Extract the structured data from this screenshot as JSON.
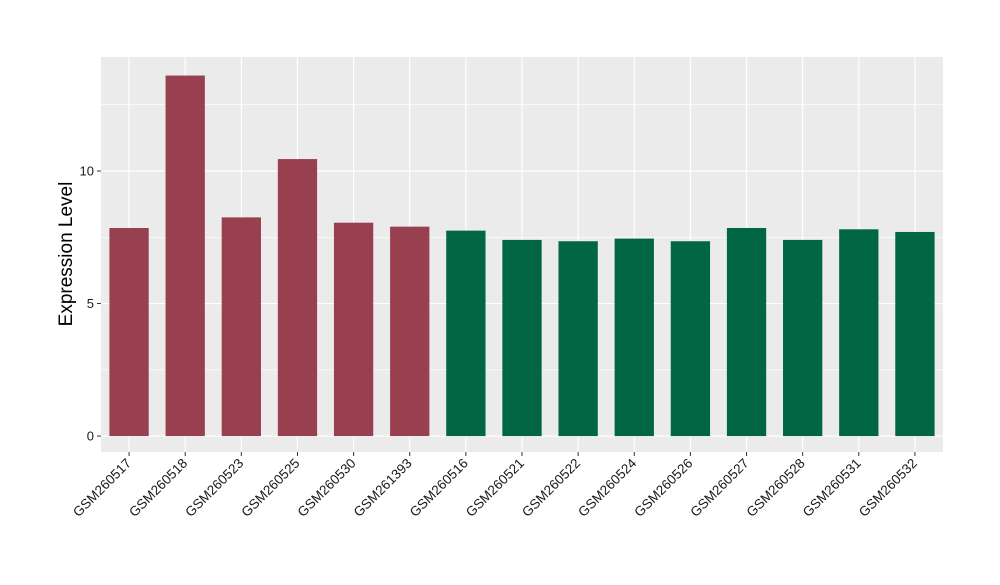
{
  "chart_data": {
    "type": "bar",
    "ylabel": "Expression Level",
    "xlabel": "",
    "title": "",
    "ylim": [
      -0.6,
      14.3
    ],
    "yticks": [
      0,
      5,
      10
    ],
    "categories": [
      "GSM260517",
      "GSM260518",
      "GSM260523",
      "GSM260525",
      "GSM260530",
      "GSM261393",
      "GSM260516",
      "GSM260521",
      "GSM260522",
      "GSM260524",
      "GSM260526",
      "GSM260527",
      "GSM260528",
      "GSM260531",
      "GSM260532"
    ],
    "values": [
      7.85,
      13.6,
      8.25,
      10.45,
      8.05,
      7.9,
      7.75,
      7.4,
      7.35,
      7.45,
      7.35,
      7.85,
      7.4,
      7.8,
      7.7
    ],
    "groups": [
      0,
      0,
      0,
      0,
      0,
      0,
      1,
      1,
      1,
      1,
      1,
      1,
      1,
      1,
      1
    ],
    "colors": [
      "#98404f",
      "#006643"
    ],
    "panel_background": "#ebebeb",
    "grid": true,
    "legend": "none"
  }
}
